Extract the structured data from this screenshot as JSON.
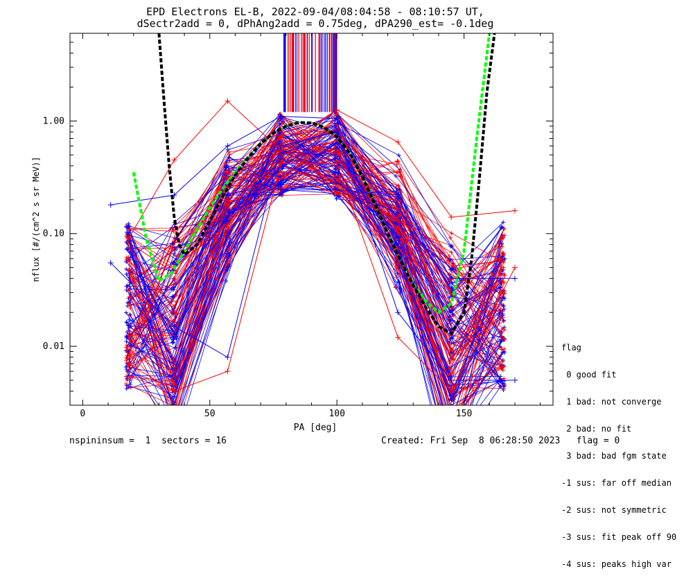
{
  "chart_data": {
    "type": "line",
    "title": "EPD Electrons EL-B, 2022-09-04/08:04:58 - 08:10:57 UT,",
    "subtitle": "dSectr2add = 0, dPhAng2add = 0.75deg, dPA290_est=  -0.1deg",
    "xlabel": "PA [deg]",
    "ylabel": "nflux [#/(cm^2 s sr MeV)]",
    "xlim": [
      -5,
      185
    ],
    "ylim": [
      0.003,
      6.0
    ],
    "yscale": "log",
    "x_ticks": [
      0,
      50,
      100,
      150
    ],
    "x_tick_labels": [
      "0",
      "50",
      "100",
      "150"
    ],
    "y_ticks": [
      0.01,
      0.1,
      1.0
    ],
    "y_tick_labels": [
      "0.01",
      "0.10",
      "1.00"
    ],
    "colors": {
      "red": "#ff0000",
      "blue": "#0000ff",
      "green": "#00ff00",
      "black": "#000000"
    },
    "series": [
      {
        "color": "red",
        "style": "solid",
        "marker": "plus",
        "x": [
          18,
          36,
          57,
          78,
          100,
          124,
          145,
          170
        ],
        "y": [
          0.09,
          0.45,
          1.5,
          0.55,
          1.25,
          0.65,
          0.14,
          0.16
        ]
      },
      {
        "color": "red",
        "style": "solid",
        "marker": "plus",
        "x": [
          18,
          36,
          57,
          78,
          100,
          124,
          145,
          170
        ],
        "y": [
          0.007,
          0.004,
          0.006,
          0.42,
          0.42,
          0.012,
          0.004,
          0.05
        ]
      },
      {
        "color": "blue",
        "style": "solid",
        "marker": "plus",
        "x": [
          11,
          36,
          57,
          78,
          100,
          124,
          145,
          170
        ],
        "y": [
          0.18,
          0.22,
          0.6,
          1.1,
          1.05,
          0.22,
          0.04,
          0.04
        ]
      },
      {
        "color": "blue",
        "style": "solid",
        "marker": "plus",
        "x": [
          11,
          36,
          57,
          78,
          100,
          124,
          145,
          170
        ],
        "y": [
          0.055,
          0.015,
          0.008,
          0.6,
          0.8,
          0.02,
          0.005,
          0.005
        ]
      },
      {
        "name": "fit",
        "color": "green",
        "style": "dashed",
        "x": [
          20,
          25,
          30,
          35,
          40,
          45,
          50,
          55,
          60,
          65,
          70,
          75,
          80,
          85,
          90,
          95,
          100,
          105,
          110,
          115,
          120,
          125,
          130,
          135,
          140,
          145,
          150,
          155,
          160
        ],
        "y": [
          0.35,
          0.09,
          0.038,
          0.045,
          0.07,
          0.11,
          0.17,
          0.25,
          0.35,
          0.48,
          0.63,
          0.78,
          0.9,
          0.97,
          0.96,
          0.88,
          0.72,
          0.52,
          0.32,
          0.18,
          0.1,
          0.058,
          0.036,
          0.025,
          0.02,
          0.024,
          0.07,
          0.7,
          6.0
        ]
      },
      {
        "name": "fit2",
        "color": "black",
        "style": "dashed",
        "x": [
          30,
          32,
          34,
          36,
          38,
          40,
          45,
          50,
          55,
          60,
          65,
          70,
          75,
          80,
          85,
          90,
          95,
          100,
          105,
          110,
          115,
          120,
          125,
          130,
          135,
          140,
          145,
          150,
          153,
          156,
          159,
          162
        ],
        "y": [
          6.0,
          1.5,
          0.4,
          0.14,
          0.08,
          0.065,
          0.08,
          0.13,
          0.21,
          0.33,
          0.47,
          0.63,
          0.78,
          0.9,
          0.97,
          0.96,
          0.88,
          0.72,
          0.52,
          0.32,
          0.18,
          0.1,
          0.058,
          0.035,
          0.022,
          0.015,
          0.013,
          0.02,
          0.06,
          0.3,
          1.8,
          6.0
        ]
      }
    ]
  },
  "footer": {
    "left": "nspininsum =  1  sectors = 16",
    "right": "Created: Fri Sep  8 06:28:50 2023   flag = 0"
  },
  "flag_legend": [
    "flag",
    " 0 good fit",
    " 1 bad: not converge",
    " 2 bad: no fit",
    " 3 bad: bad fgm state",
    "-1 sus: far off median",
    "-2 sus: not symmetric",
    "-3 sus: fit peak off 90",
    "-4 sus: peaks high var"
  ]
}
